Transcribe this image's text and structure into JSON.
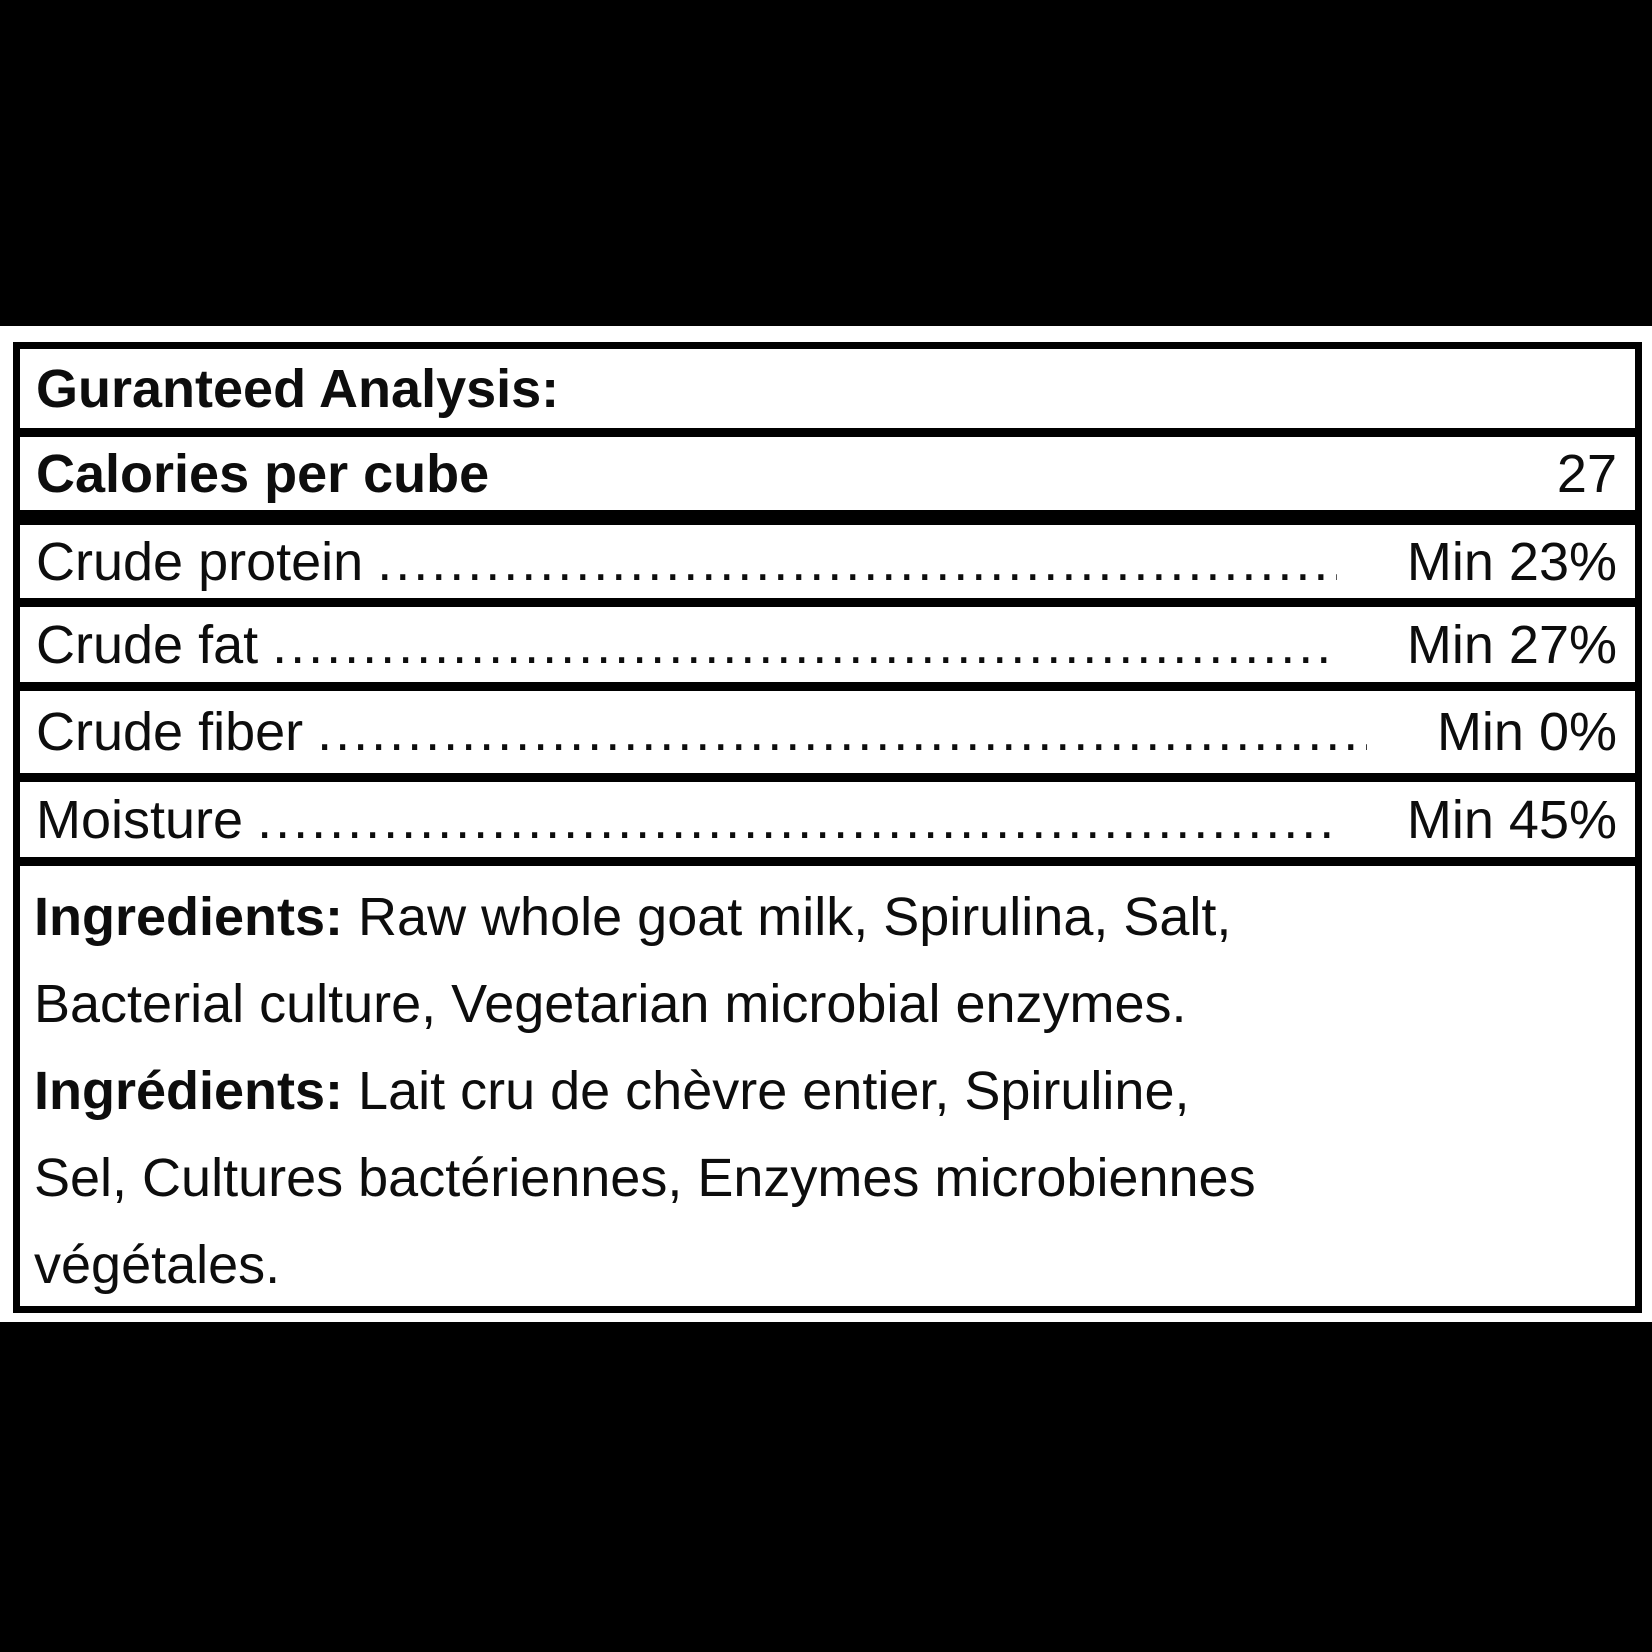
{
  "page": {
    "background_color": "#000000",
    "card_background": "#ffffff",
    "border_color": "#000000",
    "text_color": "#0d0d0d"
  },
  "table": {
    "header": "Guranteed Analysis:",
    "calories_row": {
      "label": "Calories per cube",
      "value": "27"
    },
    "analysis_rows": [
      {
        "label": "Crude protein",
        "value": "Min 23%"
      },
      {
        "label": "Crude fat",
        "value": "Min 27%"
      },
      {
        "label": "Crude fiber",
        "value": "Min 0%"
      },
      {
        "label": "Moisture",
        "value": "Min 45%"
      }
    ],
    "leader_dots": "........................................................................................................................................",
    "ingredients_lines": [
      {
        "bold": "Ingredients:",
        "rest": " Raw whole goat milk, Spirulina, Salt,"
      },
      {
        "bold": "",
        "rest": "Bacterial culture, Vegetarian microbial enzymes."
      },
      {
        "bold": "Ingrédients:",
        "rest": " Lait cru de chèvre entier, Spiruline,"
      },
      {
        "bold": "",
        "rest": "Sel, Cultures bactériennes, Enzymes microbiennes"
      },
      {
        "bold": "",
        "rest": "végétales."
      }
    ]
  }
}
